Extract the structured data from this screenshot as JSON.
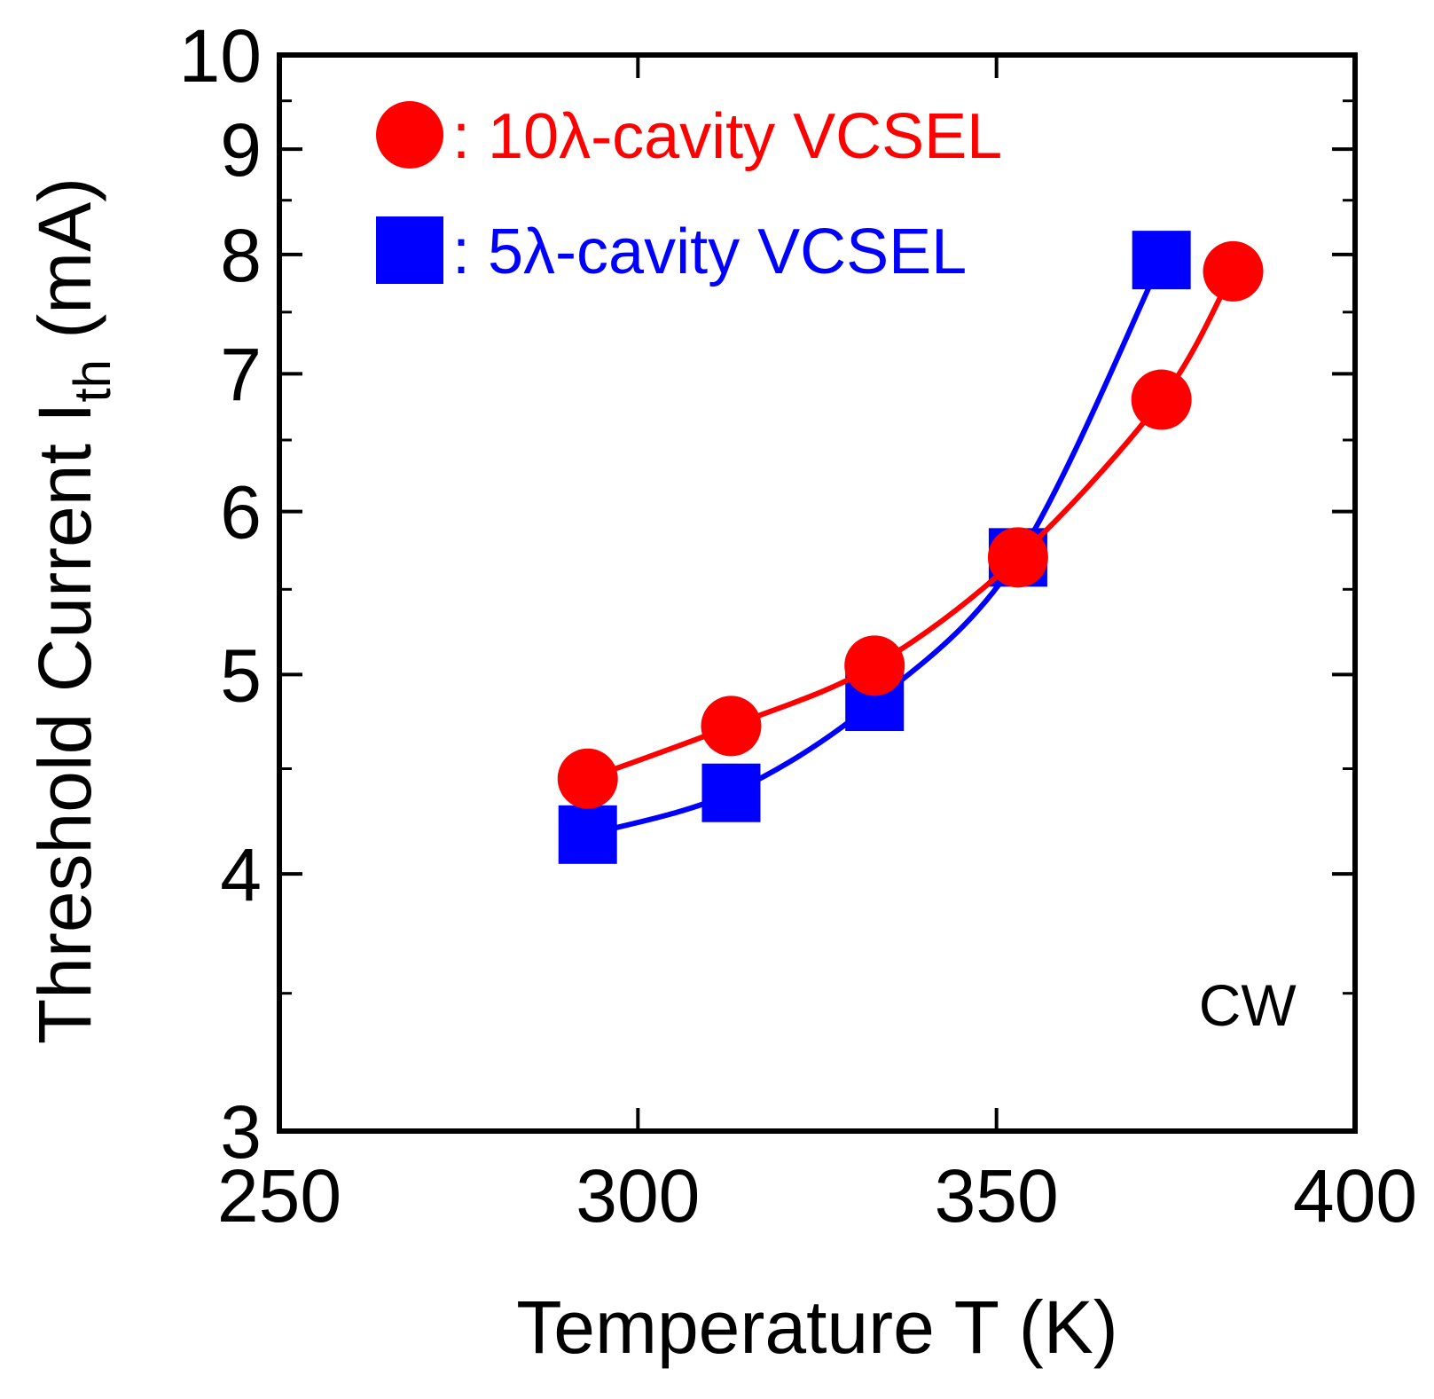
{
  "chart_data": {
    "type": "line",
    "xlabel": "Temperature T (K)",
    "ylabel": {
      "main": "Threshold Current I",
      "subscript": "th",
      "unit": " (mA)"
    },
    "xlim": [
      250,
      400
    ],
    "ylim": [
      3,
      10
    ],
    "y_scale": "log",
    "x_ticks": [
      250,
      300,
      350,
      400
    ],
    "y_ticks": [
      3,
      4,
      5,
      6,
      7,
      8,
      9,
      10
    ],
    "grid": false,
    "legend_position": "top-left",
    "annotation": "CW",
    "series": [
      {
        "name": "10λ-cavity VCSEL",
        "legend_label": ":  10λ-cavity VCSEL",
        "color": "#ff0000",
        "marker": "circle",
        "x": [
          293,
          313,
          333,
          353,
          373,
          383
        ],
        "y": [
          4.45,
          4.72,
          5.05,
          5.7,
          6.8,
          7.85
        ]
      },
      {
        "name": "5λ-cavity VCSEL",
        "legend_label": ":  5λ-cavity VCSEL",
        "color": "#0000ff",
        "marker": "square",
        "x": [
          293,
          313,
          333,
          353,
          373
        ],
        "y": [
          4.18,
          4.38,
          4.85,
          5.7,
          7.95
        ]
      }
    ]
  }
}
